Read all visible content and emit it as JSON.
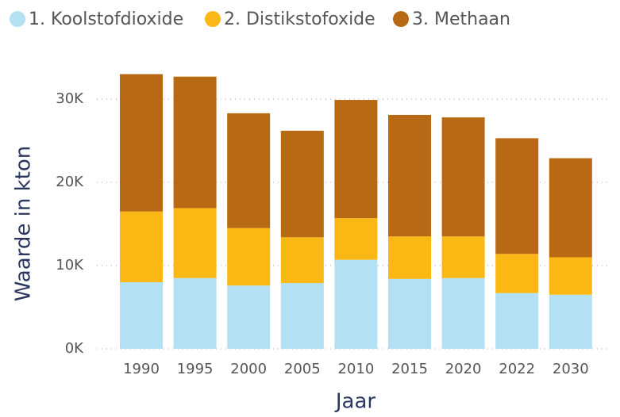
{
  "chart_data": {
    "type": "stacked-bar",
    "x_label": "Jaar",
    "y_label": "Waarde in kton",
    "categories": [
      "1990",
      "1995",
      "2000",
      "2005",
      "2010",
      "2015",
      "2020",
      "2022",
      "2030"
    ],
    "series": [
      {
        "name": "1. Koolstofdioxide",
        "color": "#b3e0f2",
        "values": [
          8000,
          8500,
          7600,
          7900,
          10700,
          8400,
          8500,
          6700,
          6500
        ]
      },
      {
        "name": "2. Distikstofoxide",
        "color": "#fbb814",
        "values": [
          8500,
          8400,
          6900,
          5500,
          5000,
          5100,
          5000,
          4700,
          4500
        ]
      },
      {
        "name": "3. Methaan",
        "color": "#b86914",
        "values": [
          16500,
          15800,
          13800,
          12800,
          14200,
          14600,
          14300,
          13900,
          11900
        ]
      }
    ],
    "ylim": [
      0,
      35000
    ],
    "yticks": [
      {
        "value": 0,
        "label": "0K"
      },
      {
        "value": 10000,
        "label": "10K"
      },
      {
        "value": 20000,
        "label": "20K"
      },
      {
        "value": 30000,
        "label": "30K"
      }
    ],
    "grid": true,
    "legend": "top-left"
  }
}
